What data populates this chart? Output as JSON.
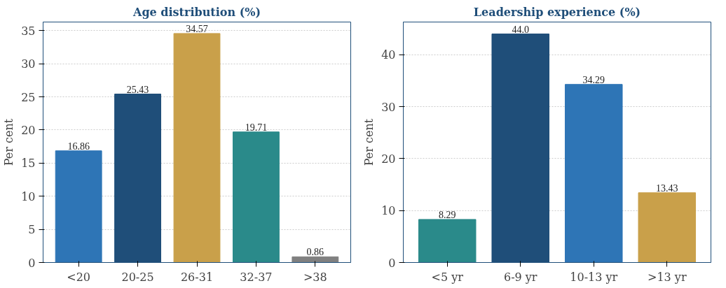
{
  "chart_data": [
    {
      "type": "bar",
      "title": "Age distribution (%)",
      "ylabel": "Per cent",
      "categories": [
        "<20",
        "20-25",
        "26-31",
        "32-37",
        ">38"
      ],
      "values": [
        16.86,
        25.43,
        34.57,
        19.71,
        0.86
      ],
      "colors": [
        "#2e75b6",
        "#1f4e79",
        "#c9a04a",
        "#2a8a8a",
        "#808080"
      ],
      "ylim": [
        0,
        36.3
      ],
      "yticks": [
        0,
        5,
        10,
        15,
        20,
        25,
        30,
        35
      ],
      "grid": "y",
      "data_labels": true
    },
    {
      "type": "bar",
      "title": "Leadership experience (%)",
      "ylabel": "Per cent",
      "categories": [
        "<5 yr",
        "6-9 yr",
        "10-13 yr",
        ">13 yr"
      ],
      "values": [
        8.29,
        44.0,
        34.29,
        13.43
      ],
      "value_labels": [
        "8.29",
        "44.0",
        "34.29",
        "13.43"
      ],
      "colors": [
        "#2a8a8a",
        "#1f4e79",
        "#2e75b6",
        "#c9a04a"
      ],
      "ylim": [
        0,
        46.3
      ],
      "yticks": [
        0,
        10,
        20,
        30,
        40
      ],
      "grid": "y"
    }
  ]
}
